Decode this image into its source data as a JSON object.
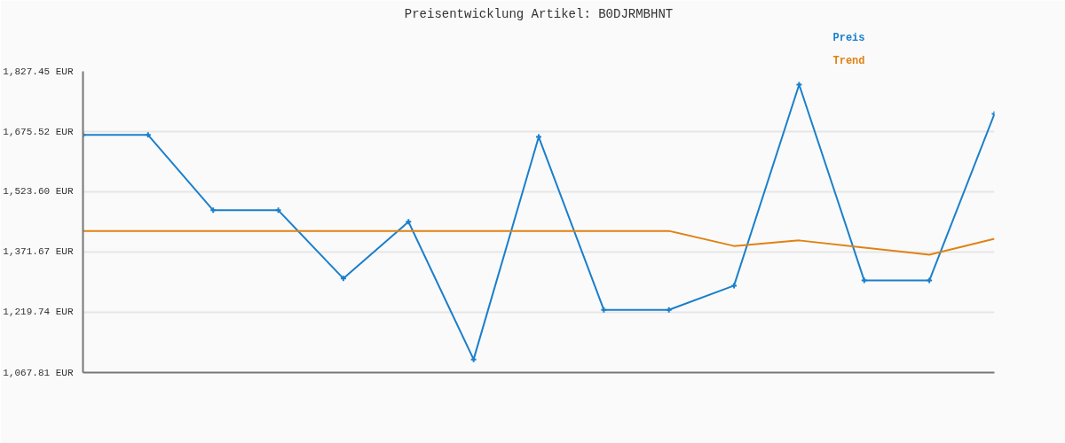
{
  "chart_data": {
    "type": "line",
    "title": "Preisentwicklung Artikel: B0DJRMBHNT",
    "categories": [
      null,
      null,
      null,
      null,
      null,
      null,
      null,
      null,
      null,
      null,
      null,
      null,
      null,
      null,
      null
    ],
    "series": [
      {
        "name": "Preis",
        "color": "#1a7fcc",
        "marker": "cross",
        "values": [
          1667,
          1667,
          1477,
          1477,
          1305,
          1448,
          1101,
          1662,
          1226,
          1226,
          1287,
          1794,
          1300,
          1300,
          1720
        ]
      },
      {
        "name": "Trend",
        "color": "#e08214",
        "marker": "none",
        "values": [
          1425,
          1425,
          1425,
          1425,
          1425,
          1425,
          1425,
          1425,
          1425,
          1425,
          1387,
          1401,
          1383,
          1365,
          1405
        ]
      }
    ],
    "ylim": [
      1067.81,
      1827.45
    ],
    "yticks": [
      {
        "value": 1067.81,
        "label": "1,067.81 EUR"
      },
      {
        "value": 1219.74,
        "label": "1,219.74 EUR"
      },
      {
        "value": 1371.67,
        "label": "1,371.67 EUR"
      },
      {
        "value": 1523.6,
        "label": "1,523.60 EUR"
      },
      {
        "value": 1675.52,
        "label": "1,675.52 EUR"
      },
      {
        "value": 1827.45,
        "label": "1,827.45 EUR"
      }
    ],
    "grid": "y",
    "line_style": "solid"
  }
}
